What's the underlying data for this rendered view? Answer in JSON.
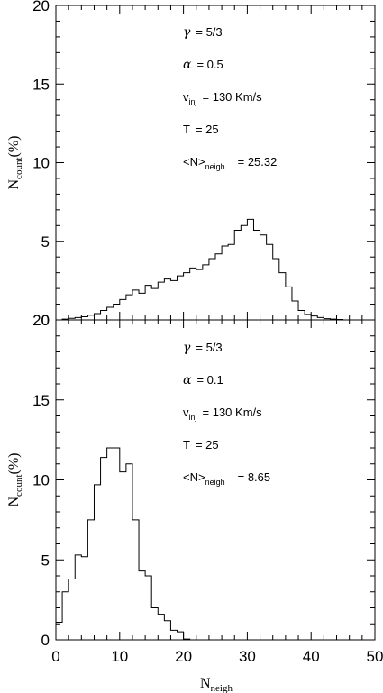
{
  "chart_data": [
    {
      "type": "bar",
      "title": "",
      "xlabel": "N",
      "xlabel_sub": "neigh",
      "ylabel": "N",
      "ylabel_sub": "count",
      "ylabel_suffix": "(%)",
      "xlim": [
        0,
        50
      ],
      "ylim": [
        0,
        20
      ],
      "yticks": [
        "0",
        "5",
        "10",
        "15",
        "20"
      ],
      "grid": false,
      "annotations": [
        {
          "sym": "γ",
          "sub": "",
          "text": "= 5/3"
        },
        {
          "sym": "α",
          "sub": "",
          "text": "= 0.5"
        },
        {
          "sym": "v",
          "sub": "inj",
          "text": "= 130 Km/s"
        },
        {
          "sym": "T",
          "sub": "",
          "text": "= 25"
        },
        {
          "sym": "<N>",
          "sub": "neigh",
          "text": "= 25.32"
        }
      ],
      "bin_width": 1,
      "bin_start": 1,
      "values": [
        0.05,
        0.1,
        0.15,
        0.2,
        0.3,
        0.4,
        0.6,
        0.8,
        1.0,
        1.3,
        1.6,
        1.9,
        1.7,
        2.2,
        2.0,
        2.4,
        2.6,
        2.5,
        2.8,
        3.0,
        3.3,
        3.2,
        3.5,
        3.9,
        4.2,
        4.7,
        4.8,
        5.7,
        6.0,
        6.4,
        5.7,
        5.4,
        4.8,
        3.9,
        3.0,
        2.1,
        1.2,
        0.6,
        0.35,
        0.25,
        0.15,
        0.08,
        0.05,
        0.03
      ]
    },
    {
      "type": "bar",
      "title": "",
      "xlabel": "N",
      "xlabel_sub": "neigh",
      "ylabel": "N",
      "ylabel_sub": "count",
      "ylabel_suffix": "(%)",
      "xlim": [
        0,
        50
      ],
      "ylim": [
        0,
        20
      ],
      "xticks": [
        "0",
        "10",
        "20",
        "30",
        "40",
        "50"
      ],
      "yticks": [
        "0",
        "5",
        "10",
        "15",
        "20"
      ],
      "grid": false,
      "annotations": [
        {
          "sym": "γ",
          "sub": "",
          "text": "= 5/3"
        },
        {
          "sym": "α",
          "sub": "",
          "text": "= 0.1"
        },
        {
          "sym": "v",
          "sub": "inj",
          "text": "= 130 Km/s"
        },
        {
          "sym": "T",
          "sub": "",
          "text": "= 25"
        },
        {
          "sym": "<N>",
          "sub": "neigh",
          "text": "= 8.65"
        }
      ],
      "bin_width": 1,
      "bin_start": 0,
      "values": [
        1.1,
        3.0,
        3.8,
        5.3,
        5.2,
        7.5,
        9.7,
        11.4,
        12.0,
        12.0,
        10.5,
        11.0,
        7.5,
        4.3,
        4.0,
        2.0,
        1.6,
        1.2,
        0.6,
        0.5,
        0.05
      ]
    }
  ]
}
